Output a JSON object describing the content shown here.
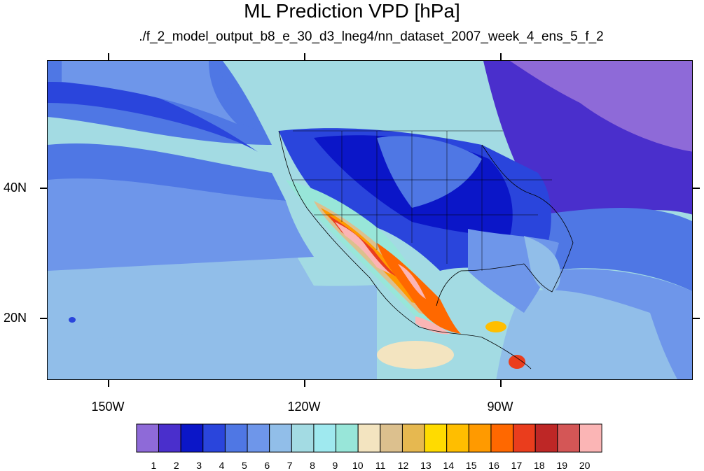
{
  "title": "ML Prediction VPD [hPa]",
  "subtitle": "./f_2_model_output_b8_e_30_d3_lneg4/nn_dataset_2007_week_4_ens_5_f_2",
  "axes": {
    "lon_labels": [
      "150W",
      "120W",
      "90W"
    ],
    "lat_labels": [
      "40N",
      "20N"
    ]
  },
  "colorbar": {
    "levels": [
      "1",
      "2",
      "3",
      "4",
      "5",
      "6",
      "7",
      "8",
      "9",
      "10",
      "11",
      "12",
      "13",
      "14",
      "15",
      "16",
      "17",
      "18",
      "19",
      "20"
    ],
    "colors": [
      "#8e6ad8",
      "#4a2fcc",
      "#0b16c8",
      "#2a45dc",
      "#4f77e4",
      "#6e96ea",
      "#91bee9",
      "#a3dbe3",
      "#9fe9ef",
      "#98e6d9",
      "#f3e4c0",
      "#dcc08e",
      "#e6b850",
      "#ffdb00",
      "#ffbe00",
      "#ff9a00",
      "#ff6800",
      "#ea3d1d",
      "#be2726",
      "#d45656",
      "#fbb5b5"
    ]
  },
  "map": {
    "projection": "cylindrical equidistant",
    "lon_range": [
      -159,
      -61
    ],
    "lat_range": [
      11,
      60
    ],
    "color_fill": "filled contours of VPD"
  }
}
